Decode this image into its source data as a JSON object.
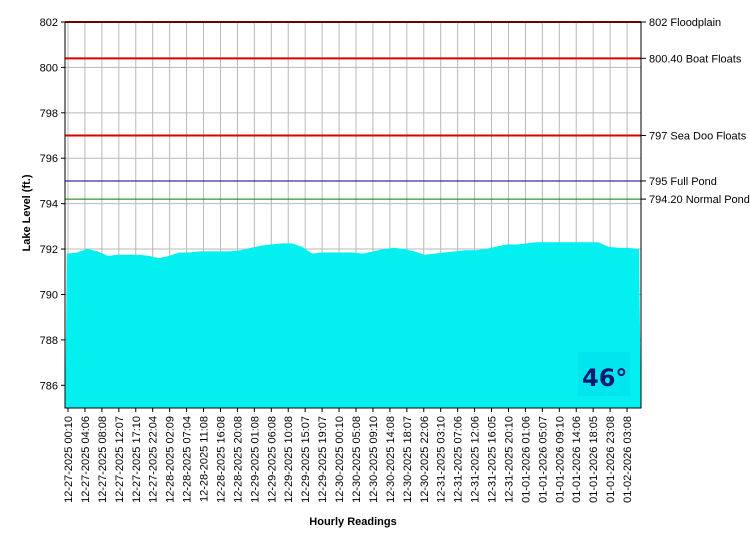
{
  "chart_data": {
    "type": "area",
    "xlabel": "Hourly Readings",
    "ylabel": "Lake Level (ft.)",
    "ylim": [
      785,
      802
    ],
    "y_ticks": [
      786,
      788,
      790,
      792,
      794,
      796,
      798,
      800,
      802
    ],
    "grid": true,
    "fill_color": "#00ffff",
    "x_tick_labels": [
      "12-27-2025 00:10",
      "12-27-2025 04:06",
      "12-27-2025 08:08",
      "12-27-2025 12:07",
      "12-27-2025 17:10",
      "12-27-2025 22:04",
      "12-28-2025 02:09",
      "12-28-2025 07:04",
      "12-28-2025 11:08",
      "12-28-2025 16:08",
      "12-28-2025 20:08",
      "12-29-2025 01:08",
      "12-29-2025 06:08",
      "12-29-2025 10:08",
      "12-29-2025 15:07",
      "12-29-2025 19:07",
      "12-30-2025 00:10",
      "12-30-2025 05:08",
      "12-30-2025 09:10",
      "12-30-2025 14:08",
      "12-30-2025 18:07",
      "12-30-2025 22:06",
      "12-31-2025 03:10",
      "12-31-2025 07:06",
      "12-31-2025 12:06",
      "12-31-2025 16:05",
      "12-31-2025 20:10",
      "01-01-2026 01:06",
      "01-01-2026 05:07",
      "01-01-2026 09:10",
      "01-01-2026 14:06",
      "01-01-2026 18:05",
      "01-01-2026 23:08",
      "01-02-2026 03:08"
    ],
    "values": [
      791.8,
      791.85,
      792.0,
      791.9,
      791.7,
      791.75,
      791.75,
      791.75,
      791.7,
      791.6,
      791.7,
      791.85,
      791.85,
      791.9,
      791.9,
      791.9,
      791.9,
      791.95,
      792.05,
      792.15,
      792.2,
      792.25,
      792.25,
      792.1,
      791.8,
      791.85,
      791.85,
      791.85,
      791.85,
      791.8,
      791.9,
      792.0,
      792.05,
      792.0,
      791.9,
      791.75,
      791.8,
      791.85,
      791.9,
      791.95,
      791.95,
      792.0,
      792.1,
      792.2,
      792.2,
      792.25,
      792.3,
      792.3,
      792.3,
      792.3,
      792.3,
      792.3,
      792.3,
      792.1,
      792.05,
      792.05,
      792.0
    ],
    "reference_lines": [
      {
        "value": 802,
        "label": "802 Floodplain",
        "color": "#dd0000"
      },
      {
        "value": 800.4,
        "label": "800.40 Boat Floats",
        "color": "#dd0000"
      },
      {
        "value": 797,
        "label": "797 Sea Doo Floats",
        "color": "#dd0000"
      },
      {
        "value": 795,
        "label": "795 Full Pond",
        "color": "#000080"
      },
      {
        "value": 794.2,
        "label": "794.20 Normal Pond",
        "color": "#008000"
      }
    ],
    "temperature": "46°"
  }
}
